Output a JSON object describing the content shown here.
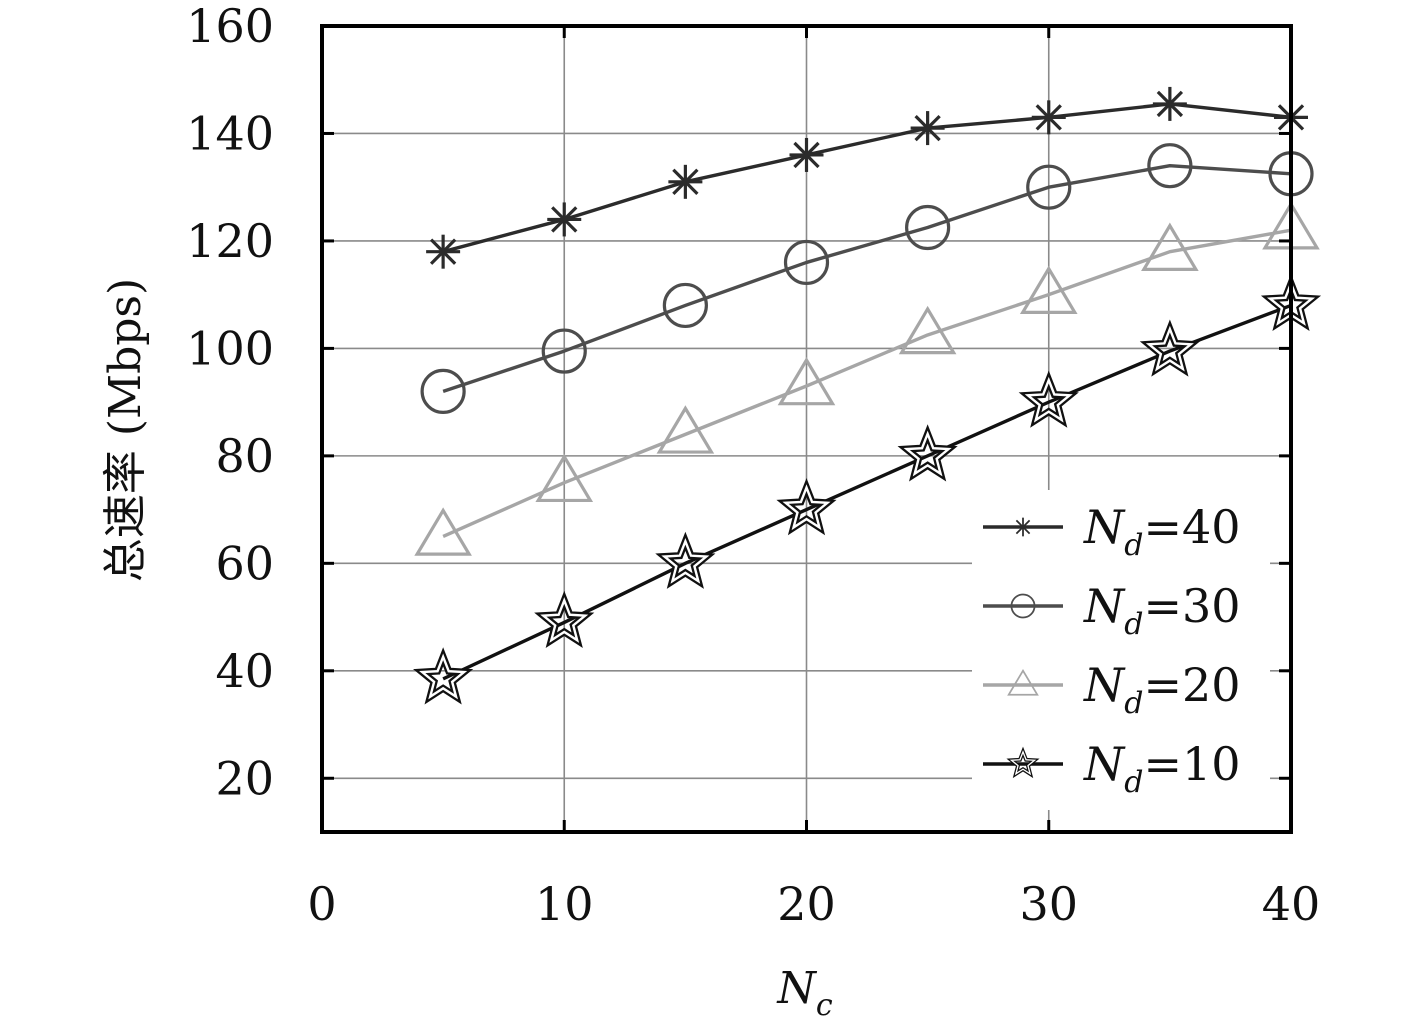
{
  "chart_data": {
    "type": "line",
    "title": "",
    "xlabel": "N",
    "xlabel_sub": "c",
    "ylabel": "总速率 (Mbps)",
    "xlim": [
      0,
      40
    ],
    "ylim": [
      10,
      160
    ],
    "xticks": [
      0,
      10,
      20,
      30,
      40
    ],
    "yticks": [
      20,
      40,
      60,
      80,
      100,
      120,
      140,
      160
    ],
    "grid": true,
    "legend_position": "bottom-right",
    "x": [
      5,
      10,
      15,
      20,
      25,
      30,
      35,
      40
    ],
    "series": [
      {
        "name": "N_d=40",
        "label_main": "N",
        "label_sub": "d",
        "label_value": "=40",
        "marker": "asterisk",
        "color": "#2b2b2b",
        "values": [
          118,
          124,
          131,
          136,
          141,
          143,
          145.5,
          143
        ]
      },
      {
        "name": "N_d=30",
        "label_main": "N",
        "label_sub": "d",
        "label_value": "=30",
        "marker": "circle",
        "color": "#4d4d4d",
        "values": [
          92,
          99.5,
          108,
          116,
          122.5,
          130,
          134,
          132.5
        ]
      },
      {
        "name": "N_d=20",
        "label_main": "N",
        "label_sub": "d",
        "label_value": "=20",
        "marker": "triangle",
        "color": "#a6a6a6",
        "values": [
          65,
          75,
          84,
          93,
          102.5,
          110,
          118,
          122
        ]
      },
      {
        "name": "N_d=10",
        "label_main": "N",
        "label_sub": "d",
        "label_value": "=10",
        "marker": "star",
        "color": "#111111",
        "values": [
          38.5,
          49,
          60,
          70,
          80,
          90,
          99.5,
          108
        ]
      }
    ]
  }
}
